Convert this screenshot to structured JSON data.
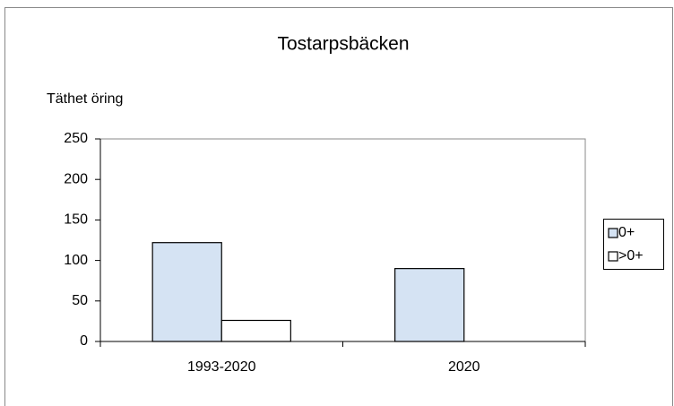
{
  "chart_data": {
    "type": "bar",
    "title": "Tostarpsbäcken",
    "y_label": "Täthet öring",
    "categories": [
      "1993-2020",
      "2020"
    ],
    "series": [
      {
        "name": "0+",
        "color": "#d5e3f3",
        "values": [
          122,
          90
        ]
      },
      {
        "name": ">0+",
        "color": "#ffffff",
        "values": [
          26,
          0
        ]
      }
    ],
    "ylim": [
      0,
      250
    ],
    "yticks": [
      0,
      50,
      100,
      150,
      200,
      250
    ],
    "legend": "right"
  }
}
